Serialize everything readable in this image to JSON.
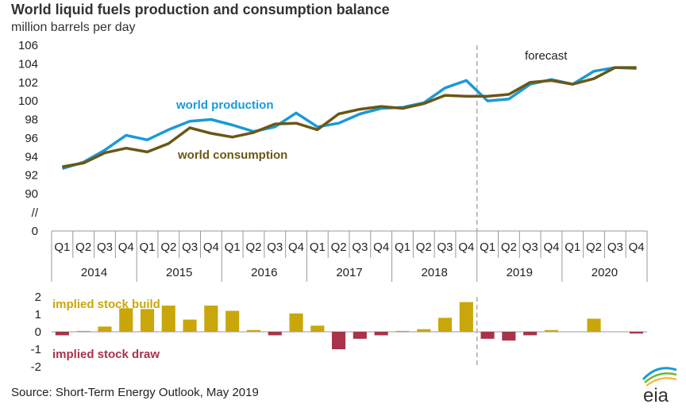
{
  "title": "World liquid fuels production and consumption balance",
  "subtitle": "million barrels per day",
  "source": "Source: Short-Term Energy Outlook, May 2019",
  "logo_text": "eia",
  "forecast_label": "forecast",
  "colors": {
    "production": "#1a9ad6",
    "consumption": "#6b5716",
    "build": "#c9a60a",
    "draw": "#a8334a",
    "axis": "#999999",
    "forecast_line": "#aaaaaa"
  },
  "chart_data": [
    {
      "type": "line",
      "title": "World liquid fuels production and consumption balance",
      "ylabel": "million barrels per day",
      "ylim": [
        90,
        106
      ],
      "y_ticks": [
        "106",
        "104",
        "102",
        "100",
        "98",
        "96",
        "94",
        "92",
        "90",
        "//",
        "0"
      ],
      "years": [
        "2014",
        "2015",
        "2016",
        "2017",
        "2018",
        "2019",
        "2020"
      ],
      "categories": [
        "Q1",
        "Q2",
        "Q3",
        "Q4",
        "Q1",
        "Q2",
        "Q3",
        "Q4",
        "Q1",
        "Q2",
        "Q3",
        "Q4",
        "Q1",
        "Q2",
        "Q3",
        "Q4",
        "Q1",
        "Q2",
        "Q3",
        "Q4",
        "Q1",
        "Q2",
        "Q3",
        "Q4",
        "Q1",
        "Q2",
        "Q3",
        "Q4"
      ],
      "forecast_start_index": 20,
      "series": [
        {
          "name": "world production",
          "values": [
            92.7,
            93.4,
            94.7,
            96.3,
            95.8,
            96.9,
            97.8,
            98.0,
            97.4,
            96.7,
            97.2,
            98.7,
            97.2,
            97.6,
            98.6,
            99.2,
            99.3,
            99.8,
            101.4,
            102.2,
            100.0,
            100.2,
            101.8,
            102.3,
            101.8,
            103.2,
            103.6,
            103.5
          ]
        },
        {
          "name": "world consumption",
          "values": [
            92.9,
            93.3,
            94.4,
            94.9,
            94.5,
            95.4,
            97.1,
            96.5,
            96.1,
            96.6,
            97.5,
            97.6,
            96.9,
            98.6,
            99.1,
            99.4,
            99.2,
            99.7,
            100.6,
            100.5,
            100.5,
            100.7,
            102.0,
            102.2,
            101.8,
            102.4,
            103.6,
            103.6
          ]
        }
      ]
    },
    {
      "type": "bar",
      "ylim": [
        -2,
        2
      ],
      "y_ticks": [
        "2",
        "1",
        "0",
        "-1",
        "-2"
      ],
      "build_label": "implied stock  build",
      "draw_label": "implied stock draw",
      "values": [
        -0.2,
        0.05,
        0.3,
        1.35,
        1.3,
        1.5,
        0.7,
        1.5,
        1.2,
        0.1,
        -0.2,
        1.05,
        0.35,
        -1.0,
        -0.4,
        -0.2,
        0.05,
        0.15,
        0.8,
        1.7,
        -0.4,
        -0.5,
        -0.2,
        0.1,
        0.0,
        0.75,
        0.0,
        -0.1
      ]
    }
  ]
}
